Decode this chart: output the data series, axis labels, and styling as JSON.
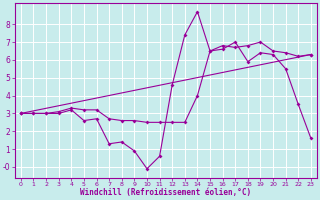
{
  "xlabel": "Windchill (Refroidissement éolien,°C)",
  "bg_color": "#c8ecec",
  "grid_color": "#ffffff",
  "line_color": "#990099",
  "xlim": [
    -0.5,
    23.5
  ],
  "ylim": [
    -0.6,
    9.2
  ],
  "xticks": [
    0,
    1,
    2,
    3,
    4,
    5,
    6,
    7,
    8,
    9,
    10,
    11,
    12,
    13,
    14,
    15,
    16,
    17,
    18,
    19,
    20,
    21,
    22,
    23
  ],
  "yticks": [
    0,
    1,
    2,
    3,
    4,
    5,
    6,
    7,
    8
  ],
  "line1_x": [
    0,
    1,
    2,
    3,
    4,
    5,
    6,
    7,
    8,
    9,
    10,
    11,
    12,
    13,
    14,
    15,
    16,
    17,
    18,
    19,
    20,
    21,
    22,
    23
  ],
  "line1_y": [
    3.0,
    3.0,
    3.0,
    3.0,
    3.2,
    2.6,
    2.7,
    1.3,
    1.4,
    0.9,
    -0.1,
    0.6,
    4.6,
    7.4,
    8.7,
    6.5,
    6.6,
    7.0,
    5.9,
    6.4,
    6.3,
    5.5,
    3.5,
    1.6
  ],
  "line2_x": [
    0,
    1,
    2,
    3,
    4,
    5,
    6,
    7,
    8,
    9,
    10,
    11,
    12,
    13,
    14,
    15,
    16,
    17,
    18,
    19,
    20,
    21,
    22,
    23
  ],
  "line2_y": [
    3.0,
    3.0,
    3.0,
    3.1,
    3.3,
    3.2,
    3.2,
    2.7,
    2.6,
    2.6,
    2.5,
    2.5,
    2.5,
    2.5,
    4.0,
    6.5,
    6.8,
    6.7,
    6.8,
    7.0,
    6.5,
    6.4,
    6.2,
    6.3
  ],
  "line3_x": [
    0,
    23
  ],
  "line3_y": [
    3.0,
    6.3
  ],
  "xlabel_fontsize": 5.5,
  "tick_fontsize_x": 4.5,
  "tick_fontsize_y": 5.5,
  "marker_size": 2.0,
  "line_width": 0.8
}
